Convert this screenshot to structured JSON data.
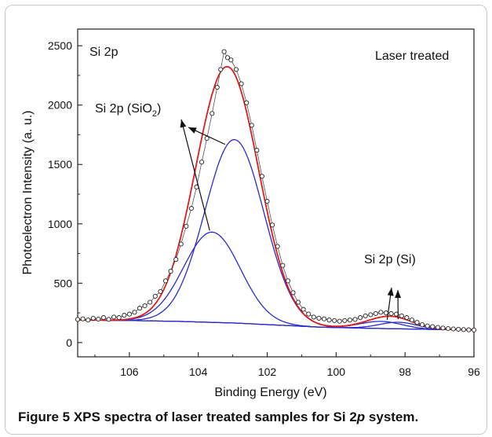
{
  "chart_data": {
    "type": "line",
    "ylabel": "Photoelectron Intensity (a. u.)",
    "xlabel": "Binding Energy (eV)",
    "xlim": [
      107.5,
      96
    ],
    "ylim": [
      -120,
      2640
    ],
    "x_reversed": true,
    "x_ticks": [
      106,
      104,
      102,
      100,
      98,
      96
    ],
    "y_ticks": [
      0,
      500,
      1000,
      1500,
      2000,
      2500
    ],
    "labels": {
      "element": "Si 2p",
      "treatment": "Laser treated",
      "sio2_main": "Si 2p (SiO",
      "sio2_sub": "2",
      "sio2_end": ")",
      "si": "Si 2p (Si)"
    },
    "background": [
      [
        107.5,
        190
      ],
      [
        106,
        186
      ],
      [
        104.5,
        178
      ],
      [
        103,
        165
      ],
      [
        101.5,
        145
      ],
      [
        100.5,
        130
      ],
      [
        99,
        120
      ],
      [
        98,
        115
      ],
      [
        97,
        110
      ],
      [
        96,
        108
      ]
    ],
    "peaks": [
      {
        "component": "SiO2-a",
        "center": 103.6,
        "height": 760,
        "sigma": 0.82
      },
      {
        "component": "SiO2-b",
        "center": 102.95,
        "height": 1545,
        "sigma": 0.86
      },
      {
        "component": "Si-a",
        "center": 98.7,
        "height": 60,
        "sigma": 0.6
      },
      {
        "component": "Si-b",
        "center": 98.2,
        "height": 55,
        "sigma": 0.55
      }
    ],
    "measured_points": [
      [
        107.5,
        195
      ],
      [
        107.35,
        200
      ],
      [
        107.2,
        190
      ],
      [
        107.05,
        205
      ],
      [
        106.9,
        198
      ],
      [
        106.75,
        210
      ],
      [
        106.6,
        195
      ],
      [
        106.45,
        215
      ],
      [
        106.3,
        210
      ],
      [
        106.15,
        230
      ],
      [
        106.0,
        240
      ],
      [
        105.85,
        255
      ],
      [
        105.7,
        290
      ],
      [
        105.55,
        310
      ],
      [
        105.4,
        340
      ],
      [
        105.25,
        390
      ],
      [
        105.1,
        430
      ],
      [
        104.95,
        520
      ],
      [
        104.8,
        600
      ],
      [
        104.65,
        700
      ],
      [
        104.5,
        830
      ],
      [
        104.35,
        980
      ],
      [
        104.2,
        1130
      ],
      [
        104.05,
        1310
      ],
      [
        103.9,
        1520
      ],
      [
        103.75,
        1720
      ],
      [
        103.6,
        1930
      ],
      [
        103.45,
        2150
      ],
      [
        103.35,
        2300
      ],
      [
        103.25,
        2450
      ],
      [
        103.15,
        2400
      ],
      [
        103.05,
        2380
      ],
      [
        102.9,
        2300
      ],
      [
        102.75,
        2180
      ],
      [
        102.6,
        2020
      ],
      [
        102.45,
        1830
      ],
      [
        102.3,
        1620
      ],
      [
        102.15,
        1400
      ],
      [
        102.0,
        1190
      ],
      [
        101.85,
        990
      ],
      [
        101.7,
        810
      ],
      [
        101.55,
        650
      ],
      [
        101.4,
        520
      ],
      [
        101.25,
        420
      ],
      [
        101.1,
        340
      ],
      [
        100.95,
        280
      ],
      [
        100.8,
        240
      ],
      [
        100.65,
        215
      ],
      [
        100.5,
        205
      ],
      [
        100.35,
        200
      ],
      [
        100.2,
        190
      ],
      [
        100.05,
        185
      ],
      [
        99.9,
        180
      ],
      [
        99.75,
        185
      ],
      [
        99.6,
        190
      ],
      [
        99.45,
        195
      ],
      [
        99.3,
        210
      ],
      [
        99.15,
        225
      ],
      [
        99.0,
        235
      ],
      [
        98.85,
        245
      ],
      [
        98.7,
        255
      ],
      [
        98.55,
        250
      ],
      [
        98.4,
        245
      ],
      [
        98.25,
        240
      ],
      [
        98.1,
        225
      ],
      [
        97.95,
        210
      ],
      [
        97.8,
        190
      ],
      [
        97.65,
        170
      ],
      [
        97.5,
        150
      ],
      [
        97.35,
        140
      ],
      [
        97.2,
        135
      ],
      [
        97.05,
        128
      ],
      [
        96.9,
        122
      ],
      [
        96.75,
        118
      ],
      [
        96.6,
        115
      ],
      [
        96.45,
        112
      ],
      [
        96.3,
        110
      ],
      [
        96.15,
        108
      ],
      [
        96.0,
        106
      ]
    ],
    "grid": false,
    "colors": {
      "envelope": "#e21b1b",
      "component": "#2a2ad0",
      "background": "#9a9a18",
      "points": "#222222",
      "arrows": "#111111"
    }
  },
  "caption": {
    "label": "Figure 5",
    "text_before_italic": " XPS spectra of laser treated samples for Si 2",
    "italic": "p",
    "text_after_italic": " system."
  }
}
